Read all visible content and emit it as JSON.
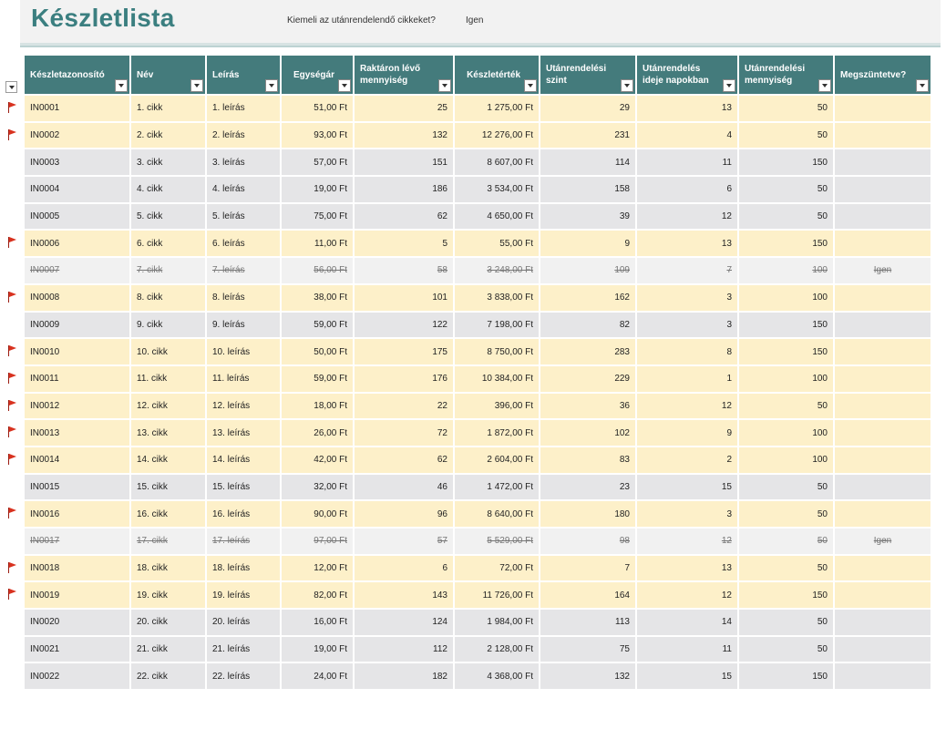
{
  "title": "Készletlista",
  "highlight": {
    "label": "Kiemeli az utánrendelendő cikkeket?",
    "value": "Igen"
  },
  "columns": [
    {
      "line1": "Készletazonosító",
      "line2": ""
    },
    {
      "line1": "Név",
      "line2": ""
    },
    {
      "line1": "Leírás",
      "line2": ""
    },
    {
      "line1": "Egységár",
      "line2": ""
    },
    {
      "line1": "Raktáron lévő",
      "line2": "mennyiség"
    },
    {
      "line1": "Készletérték",
      "line2": ""
    },
    {
      "line1": "Utánrendelési",
      "line2": "szint"
    },
    {
      "line1": "Utánrendelés",
      "line2": "ideje napokban"
    },
    {
      "line1": "Utánrendelési",
      "line2": "mennyiség"
    },
    {
      "line1": "Megszüntetve?",
      "line2": ""
    }
  ],
  "icons": {
    "flag": "flag-icon",
    "filter": "filter-dropdown-icon"
  },
  "colors": {
    "header": "#447b7c",
    "title": "#3b7f80",
    "reorder_row": "#fdf0c9",
    "normal_row": "#e5e5e7",
    "flag": "#d8321f"
  },
  "rows": [
    {
      "id": "IN0001",
      "name": "1. cikk",
      "desc": "1. leírás",
      "price": "51,00 Ft",
      "qty": "25",
      "value": "1 275,00 Ft",
      "level": "29",
      "days": "13",
      "reorder_qty": "50",
      "discontinued": "",
      "flag": true,
      "state": "reorder"
    },
    {
      "id": "IN0002",
      "name": "2. cikk",
      "desc": "2. leírás",
      "price": "93,00 Ft",
      "qty": "132",
      "value": "12 276,00 Ft",
      "level": "231",
      "days": "4",
      "reorder_qty": "50",
      "discontinued": "",
      "flag": true,
      "state": "reorder"
    },
    {
      "id": "IN0003",
      "name": "3. cikk",
      "desc": "3. leírás",
      "price": "57,00 Ft",
      "qty": "151",
      "value": "8 607,00 Ft",
      "level": "114",
      "days": "11",
      "reorder_qty": "150",
      "discontinued": "",
      "flag": false,
      "state": "normal"
    },
    {
      "id": "IN0004",
      "name": "4. cikk",
      "desc": "4. leírás",
      "price": "19,00 Ft",
      "qty": "186",
      "value": "3 534,00 Ft",
      "level": "158",
      "days": "6",
      "reorder_qty": "50",
      "discontinued": "",
      "flag": false,
      "state": "normal"
    },
    {
      "id": "IN0005",
      "name": "5. cikk",
      "desc": "5. leírás",
      "price": "75,00 Ft",
      "qty": "62",
      "value": "4 650,00 Ft",
      "level": "39",
      "days": "12",
      "reorder_qty": "50",
      "discontinued": "",
      "flag": false,
      "state": "normal"
    },
    {
      "id": "IN0006",
      "name": "6. cikk",
      "desc": "6. leírás",
      "price": "11,00 Ft",
      "qty": "5",
      "value": "55,00 Ft",
      "level": "9",
      "days": "13",
      "reorder_qty": "150",
      "discontinued": "",
      "flag": true,
      "state": "reorder"
    },
    {
      "id": "IN0007",
      "name": "7. cikk",
      "desc": "7. leírás",
      "price": "56,00 Ft",
      "qty": "58",
      "value": "3 248,00 Ft",
      "level": "109",
      "days": "7",
      "reorder_qty": "100",
      "discontinued": "Igen",
      "flag": false,
      "state": "disc"
    },
    {
      "id": "IN0008",
      "name": "8. cikk",
      "desc": "8. leírás",
      "price": "38,00 Ft",
      "qty": "101",
      "value": "3 838,00 Ft",
      "level": "162",
      "days": "3",
      "reorder_qty": "100",
      "discontinued": "",
      "flag": true,
      "state": "reorder"
    },
    {
      "id": "IN0009",
      "name": "9. cikk",
      "desc": "9. leírás",
      "price": "59,00 Ft",
      "qty": "122",
      "value": "7 198,00 Ft",
      "level": "82",
      "days": "3",
      "reorder_qty": "150",
      "discontinued": "",
      "flag": false,
      "state": "normal"
    },
    {
      "id": "IN0010",
      "name": "10. cikk",
      "desc": "10. leírás",
      "price": "50,00 Ft",
      "qty": "175",
      "value": "8 750,00 Ft",
      "level": "283",
      "days": "8",
      "reorder_qty": "150",
      "discontinued": "",
      "flag": true,
      "state": "reorder"
    },
    {
      "id": "IN0011",
      "name": "11. cikk",
      "desc": "11. leírás",
      "price": "59,00 Ft",
      "qty": "176",
      "value": "10 384,00 Ft",
      "level": "229",
      "days": "1",
      "reorder_qty": "100",
      "discontinued": "",
      "flag": true,
      "state": "reorder"
    },
    {
      "id": "IN0012",
      "name": "12. cikk",
      "desc": "12. leírás",
      "price": "18,00 Ft",
      "qty": "22",
      "value": "396,00 Ft",
      "level": "36",
      "days": "12",
      "reorder_qty": "50",
      "discontinued": "",
      "flag": true,
      "state": "reorder"
    },
    {
      "id": "IN0013",
      "name": "13. cikk",
      "desc": "13. leírás",
      "price": "26,00 Ft",
      "qty": "72",
      "value": "1 872,00 Ft",
      "level": "102",
      "days": "9",
      "reorder_qty": "100",
      "discontinued": "",
      "flag": true,
      "state": "reorder"
    },
    {
      "id": "IN0014",
      "name": "14. cikk",
      "desc": "14. leírás",
      "price": "42,00 Ft",
      "qty": "62",
      "value": "2 604,00 Ft",
      "level": "83",
      "days": "2",
      "reorder_qty": "100",
      "discontinued": "",
      "flag": true,
      "state": "reorder"
    },
    {
      "id": "IN0015",
      "name": "15. cikk",
      "desc": "15. leírás",
      "price": "32,00 Ft",
      "qty": "46",
      "value": "1 472,00 Ft",
      "level": "23",
      "days": "15",
      "reorder_qty": "50",
      "discontinued": "",
      "flag": false,
      "state": "normal"
    },
    {
      "id": "IN0016",
      "name": "16. cikk",
      "desc": "16. leírás",
      "price": "90,00 Ft",
      "qty": "96",
      "value": "8 640,00 Ft",
      "level": "180",
      "days": "3",
      "reorder_qty": "50",
      "discontinued": "",
      "flag": true,
      "state": "reorder"
    },
    {
      "id": "IN0017",
      "name": "17. cikk",
      "desc": "17. leírás",
      "price": "97,00 Ft",
      "qty": "57",
      "value": "5 529,00 Ft",
      "level": "98",
      "days": "12",
      "reorder_qty": "50",
      "discontinued": "Igen",
      "flag": false,
      "state": "disc"
    },
    {
      "id": "IN0018",
      "name": "18. cikk",
      "desc": "18. leírás",
      "price": "12,00 Ft",
      "qty": "6",
      "value": "72,00 Ft",
      "level": "7",
      "days": "13",
      "reorder_qty": "50",
      "discontinued": "",
      "flag": true,
      "state": "reorder"
    },
    {
      "id": "IN0019",
      "name": "19. cikk",
      "desc": "19. leírás",
      "price": "82,00 Ft",
      "qty": "143",
      "value": "11 726,00 Ft",
      "level": "164",
      "days": "12",
      "reorder_qty": "150",
      "discontinued": "",
      "flag": true,
      "state": "reorder"
    },
    {
      "id": "IN0020",
      "name": "20. cikk",
      "desc": "20. leírás",
      "price": "16,00 Ft",
      "qty": "124",
      "value": "1 984,00 Ft",
      "level": "113",
      "days": "14",
      "reorder_qty": "50",
      "discontinued": "",
      "flag": false,
      "state": "normal"
    },
    {
      "id": "IN0021",
      "name": "21. cikk",
      "desc": "21. leírás",
      "price": "19,00 Ft",
      "qty": "112",
      "value": "2 128,00 Ft",
      "level": "75",
      "days": "11",
      "reorder_qty": "50",
      "discontinued": "",
      "flag": false,
      "state": "normal"
    },
    {
      "id": "IN0022",
      "name": "22. cikk",
      "desc": "22. leírás",
      "price": "24,00 Ft",
      "qty": "182",
      "value": "4 368,00 Ft",
      "level": "132",
      "days": "15",
      "reorder_qty": "150",
      "discontinued": "",
      "flag": false,
      "state": "normal"
    }
  ]
}
